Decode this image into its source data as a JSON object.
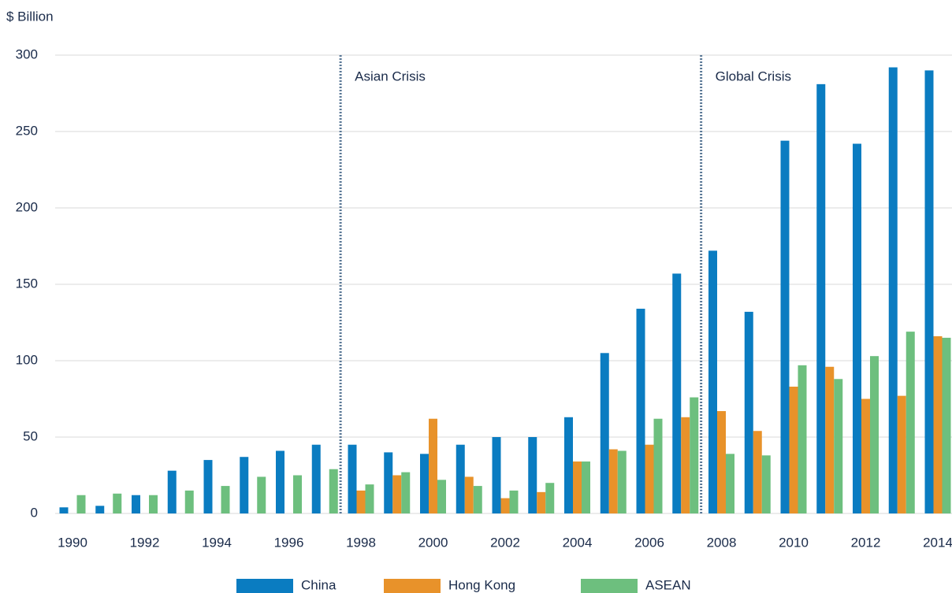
{
  "chart_data": {
    "type": "bar",
    "y_label": "$ Billion",
    "categories": [
      "1990",
      null,
      "1992",
      null,
      "1994",
      null,
      "1996",
      null,
      "1998",
      null,
      "2000",
      null,
      "2002",
      null,
      "2004",
      null,
      "2006",
      null,
      "2008",
      null,
      "2010",
      null,
      "2012",
      null,
      "2014"
    ],
    "series": [
      {
        "name": "China",
        "color": "#0a7cc1",
        "values": [
          4,
          5,
          12,
          28,
          35,
          37,
          41,
          45,
          45,
          40,
          39,
          45,
          50,
          50,
          63,
          105,
          134,
          157,
          172,
          132,
          244,
          281,
          242,
          292,
          290
        ]
      },
      {
        "name": "Hong Kong",
        "color": "#e8922a",
        "values": [
          null,
          null,
          null,
          null,
          null,
          null,
          null,
          null,
          15,
          25,
          62,
          24,
          10,
          14,
          34,
          42,
          45,
          63,
          67,
          54,
          83,
          96,
          75,
          77,
          116
        ]
      },
      {
        "name": "ASEAN",
        "color": "#6dbf7e",
        "values": [
          12,
          13,
          12,
          15,
          18,
          24,
          25,
          29,
          19,
          27,
          22,
          18,
          15,
          20,
          34,
          41,
          62,
          76,
          39,
          38,
          97,
          88,
          103,
          119,
          115
        ]
      }
    ],
    "annotations": [
      "Asian Crisis",
      "Global Crisis"
    ],
    "ylim": [
      0,
      300
    ],
    "yticks": [
      0,
      50,
      100,
      150,
      200,
      250,
      300
    ],
    "grid": true,
    "legend": "bottom"
  }
}
